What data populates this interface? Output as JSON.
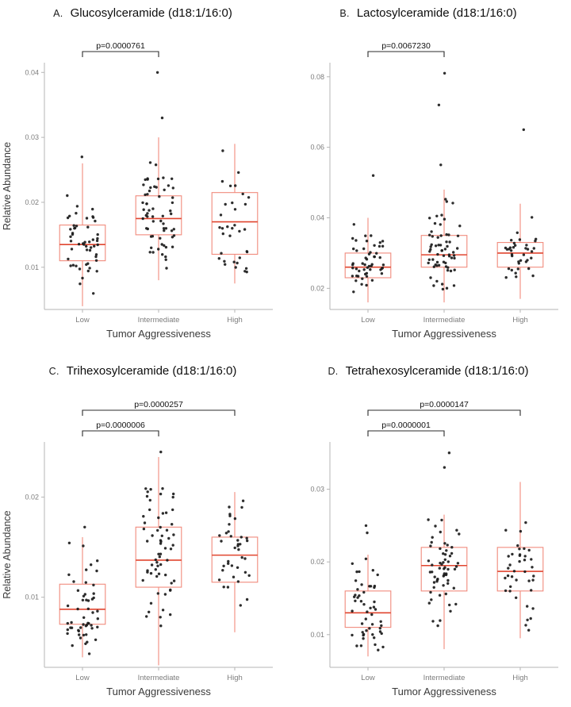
{
  "colors": {
    "box_stroke": "#f18a7c",
    "median_stroke": "#e0452f",
    "whisker_stroke": "#f18a7c",
    "point": "#1b1b1b",
    "axis_line": "#b5b5b5",
    "tick_text": "#7d7d7d",
    "axis_title_text": "#3a3a3a",
    "bracket": "#2b2b2b",
    "bracket_text": "#111111",
    "background": "#ffffff"
  },
  "chart_data": [
    {
      "type": "boxplot",
      "panel_label": "A.",
      "title": "Glucosylceramide (d18:1/16:0)",
      "xlabel": "Tumor Aggressiveness",
      "ylabel": "Relative Abundance",
      "categories": [
        "Low",
        "Intermediate",
        "High"
      ],
      "ylim": [
        0.0035,
        0.0415
      ],
      "yticks": [
        {
          "value": 0.01,
          "label": "0.01"
        },
        {
          "value": 0.02,
          "label": "0.02"
        },
        {
          "value": 0.03,
          "label": "0.03"
        },
        {
          "value": 0.04,
          "label": "0.04"
        }
      ],
      "boxes": [
        {
          "category": "Low",
          "n_points": 52,
          "whisker_low": 0.004,
          "q1": 0.011,
          "median": 0.0135,
          "q3": 0.0165,
          "whisker_high": 0.026,
          "outliers": [
            0.027
          ]
        },
        {
          "category": "Intermediate",
          "n_points": 62,
          "whisker_low": 0.008,
          "q1": 0.015,
          "median": 0.0175,
          "q3": 0.021,
          "whisker_high": 0.03,
          "outliers": [
            0.033,
            0.04
          ]
        },
        {
          "category": "High",
          "n_points": 34,
          "whisker_low": 0.0075,
          "q1": 0.012,
          "median": 0.017,
          "q3": 0.0215,
          "whisker_high": 0.029,
          "outliers": []
        }
      ],
      "significance": [
        {
          "group1": "Low",
          "group2": "Intermediate",
          "label": "p=0.0000761",
          "level": 0
        }
      ],
      "legend": "none",
      "grid": "off"
    },
    {
      "type": "boxplot",
      "panel_label": "B.",
      "title": "Lactosylceramide (d18:1/16:0)",
      "xlabel": "Tumor Aggressiveness",
      "ylabel": "",
      "categories": [
        "Low",
        "Intermediate",
        "High"
      ],
      "ylim": [
        0.014,
        0.084
      ],
      "yticks": [
        {
          "value": 0.02,
          "label": "0.02"
        },
        {
          "value": 0.04,
          "label": "0.04"
        },
        {
          "value": 0.06,
          "label": "0.06"
        },
        {
          "value": 0.08,
          "label": "0.08"
        }
      ],
      "boxes": [
        {
          "category": "Low",
          "n_points": 52,
          "whisker_low": 0.016,
          "q1": 0.023,
          "median": 0.026,
          "q3": 0.03,
          "whisker_high": 0.04,
          "outliers": [
            0.052
          ]
        },
        {
          "category": "Intermediate",
          "n_points": 62,
          "whisker_low": 0.016,
          "q1": 0.026,
          "median": 0.0295,
          "q3": 0.035,
          "whisker_high": 0.048,
          "outliers": [
            0.055,
            0.072,
            0.081
          ]
        },
        {
          "category": "High",
          "n_points": 36,
          "whisker_low": 0.017,
          "q1": 0.026,
          "median": 0.03,
          "q3": 0.033,
          "whisker_high": 0.044,
          "outliers": [
            0.065
          ]
        }
      ],
      "significance": [
        {
          "group1": "Low",
          "group2": "Intermediate",
          "label": "p=0.0067230",
          "level": 0
        }
      ],
      "legend": "none",
      "grid": "off"
    },
    {
      "type": "boxplot",
      "panel_label": "C.",
      "title": "Trihexosylceramide (d18:1/16:0)",
      "xlabel": "Tumor Aggressiveness",
      "ylabel": "Relative Abundance",
      "categories": [
        "Low",
        "Intermediate",
        "High"
      ],
      "ylim": [
        0.003,
        0.0255
      ],
      "yticks": [
        {
          "value": 0.01,
          "label": "0.01"
        },
        {
          "value": 0.02,
          "label": "0.02"
        }
      ],
      "boxes": [
        {
          "category": "Low",
          "n_points": 52,
          "whisker_low": 0.004,
          "q1": 0.0073,
          "median": 0.0088,
          "q3": 0.0113,
          "whisker_high": 0.016,
          "outliers": [
            0.017
          ]
        },
        {
          "category": "Intermediate",
          "n_points": 62,
          "whisker_low": 0.0032,
          "q1": 0.011,
          "median": 0.0137,
          "q3": 0.017,
          "whisker_high": 0.024,
          "outliers": [
            0.0245
          ]
        },
        {
          "category": "High",
          "n_points": 38,
          "whisker_low": 0.0065,
          "q1": 0.0115,
          "median": 0.0142,
          "q3": 0.016,
          "whisker_high": 0.0205,
          "outliers": []
        }
      ],
      "significance": [
        {
          "group1": "Low",
          "group2": "Intermediate",
          "label": "p=0.0000006",
          "level": 0
        },
        {
          "group1": "Low",
          "group2": "High",
          "label": "p=0.0000257",
          "level": 1
        }
      ],
      "legend": "none",
      "grid": "off"
    },
    {
      "type": "boxplot",
      "panel_label": "D.",
      "title": "Tetrahexosylceramide (d18:1/16:0)",
      "xlabel": "Tumor Aggressiveness",
      "ylabel": "",
      "categories": [
        "Low",
        "Intermediate",
        "High"
      ],
      "ylim": [
        0.0055,
        0.0365
      ],
      "yticks": [
        {
          "value": 0.01,
          "label": "0.01"
        },
        {
          "value": 0.02,
          "label": "0.02"
        },
        {
          "value": 0.03,
          "label": "0.03"
        }
      ],
      "boxes": [
        {
          "category": "Low",
          "n_points": 50,
          "whisker_low": 0.007,
          "q1": 0.011,
          "median": 0.013,
          "q3": 0.016,
          "whisker_high": 0.021,
          "outliers": [
            0.024,
            0.025
          ]
        },
        {
          "category": "Intermediate",
          "n_points": 60,
          "whisker_low": 0.008,
          "q1": 0.016,
          "median": 0.0195,
          "q3": 0.022,
          "whisker_high": 0.0265,
          "outliers": [
            0.033,
            0.035
          ]
        },
        {
          "category": "High",
          "n_points": 38,
          "whisker_low": 0.0095,
          "q1": 0.016,
          "median": 0.0187,
          "q3": 0.022,
          "whisker_high": 0.031,
          "outliers": []
        }
      ],
      "significance": [
        {
          "group1": "Low",
          "group2": "Intermediate",
          "label": "p=0.0000001",
          "level": 0
        },
        {
          "group1": "Low",
          "group2": "High",
          "label": "p=0.0000147",
          "level": 1
        }
      ],
      "legend": "none",
      "grid": "off"
    }
  ]
}
